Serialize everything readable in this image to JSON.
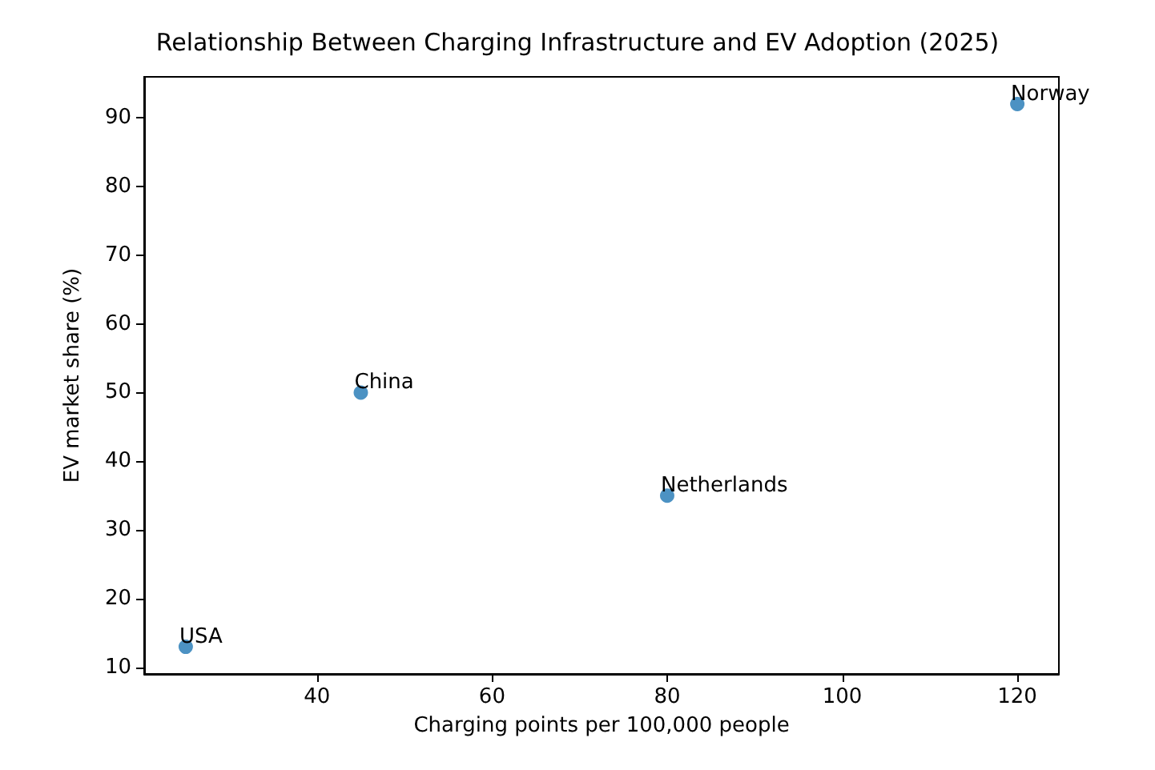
{
  "chart_data": {
    "type": "scatter",
    "title": "Relationship Between Charging Infrastructure and EV Adoption (2025)",
    "xlabel": "Charging points per 100,000 people",
    "ylabel": "EV market share (%)",
    "x": [
      25,
      45,
      80,
      120
    ],
    "series": [
      {
        "color": "#1f77b4",
        "values": [
          13,
          50,
          35,
          92
        ]
      }
    ],
    "annotations": [
      {
        "text": "USA",
        "x": 25,
        "y": 13
      },
      {
        "text": "China",
        "x": 45,
        "y": 50
      },
      {
        "text": "Netherlands",
        "x": 80,
        "y": 35
      },
      {
        "text": "Norway",
        "x": 120,
        "y": 92
      }
    ],
    "xlim": [
      20.25,
      124.75
    ],
    "xticks": [
      40,
      60,
      80,
      100,
      120
    ],
    "ylim": [
      9.05,
      95.95
    ],
    "yticks": [
      10,
      20,
      30,
      40,
      50,
      60,
      70,
      80,
      90
    ],
    "marker": "circle",
    "grid": false
  }
}
